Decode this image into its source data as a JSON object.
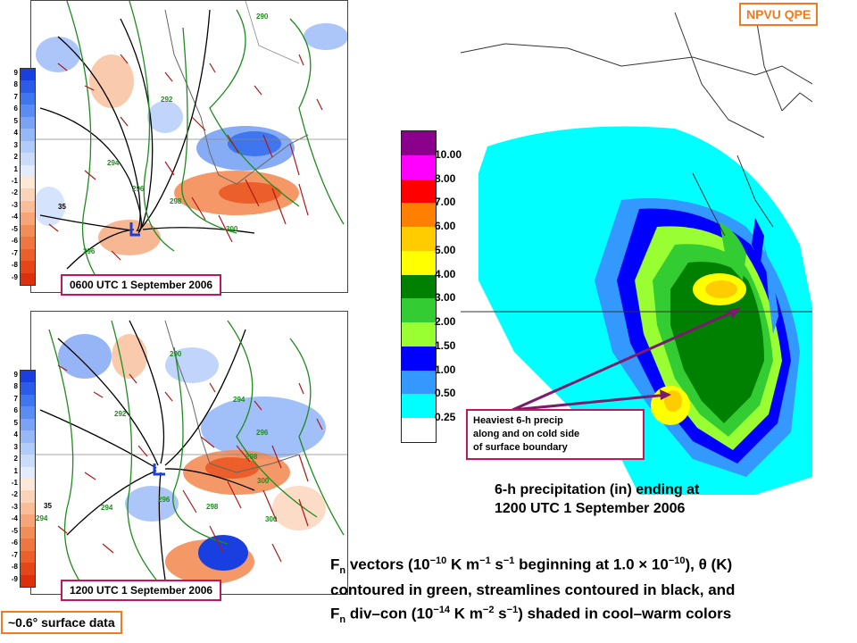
{
  "corner_tag": "NPVU QPE",
  "surface_note": "~0.6° surface data",
  "panels": [
    {
      "stamp": "0600 UTC 1 September 2006",
      "labels": [
        "290",
        "292",
        "294",
        "296",
        "298",
        "300",
        "296",
        "35"
      ]
    },
    {
      "stamp": "1200 UTC 1 September 2006",
      "labels": [
        "290",
        "292",
        "294",
        "296",
        "298",
        "300",
        "294",
        "296",
        "298",
        "300",
        "35",
        "294"
      ]
    }
  ],
  "divcon_scale": [
    "9",
    "8",
    "7",
    "6",
    "5",
    "4",
    "3",
    "2",
    "1",
    "-1",
    "-2",
    "-3",
    "-4",
    "-5",
    "-6",
    "-7",
    "-8",
    "-9"
  ],
  "divcon_colors": [
    "#1a3fe0",
    "#2c5bea",
    "#3f75ef",
    "#5a8cf2",
    "#7aa3f5",
    "#97b8f7",
    "#b2cbf9",
    "#cbdcfb",
    "#e3ecfd",
    "#fde8d8",
    "#fbd3b8",
    "#f9bd98",
    "#f6a578",
    "#f38d58",
    "#f0763f",
    "#ec5e2a",
    "#e54618",
    "#dc300c"
  ],
  "precip_legend": {
    "ticks": [
      "10.00",
      "8.00",
      "7.00",
      "6.00",
      "5.00",
      "4.00",
      "3.00",
      "2.00",
      "1.50",
      "1.00",
      "0.50",
      "0.25"
    ],
    "colors": [
      "#8b008b",
      "#ff00ff",
      "#ff0000",
      "#ff8000",
      "#ffcc00",
      "#ffff00",
      "#008000",
      "#33cc33",
      "#99ff33",
      "#0000ff",
      "#3399ff",
      "#00ffff",
      "#ffffff"
    ]
  },
  "callout": [
    "Heaviest 6-h precip",
    "along and on cold side",
    "of surface boundary"
  ],
  "precip_caption": [
    "6-h precipitation (in) ending at",
    "1200 UTC 1 September 2006"
  ],
  "bottom_caption": {
    "l1_a": "F",
    "l1_sub": "n",
    "l1_b": " vectors (10",
    "l1_sup1": "−10",
    "l1_c": " K m",
    "l1_sup2": "−1",
    "l1_d": " s",
    "l1_sup3": "−1",
    "l1_e": " beginning at 1.0 × 10",
    "l1_sup4": "−10",
    "l1_f": "), θ (K)",
    "l2": "contoured in green, streamlines contoured in black, and",
    "l3_a": "F",
    "l3_sub": "n",
    "l3_b": " div–con (10",
    "l3_sup1": "−14",
    "l3_c": " K m",
    "l3_sup2": "−2",
    "l3_d": " s",
    "l3_sup3": "−1",
    "l3_e": ") shaded in cool–warm colors"
  }
}
